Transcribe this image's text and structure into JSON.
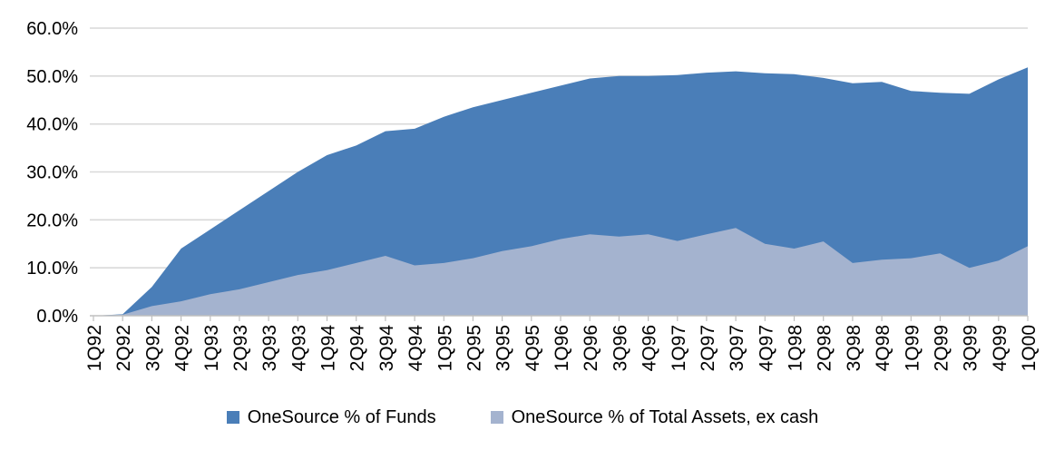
{
  "chart_data": {
    "type": "area",
    "title": "",
    "xlabel": "",
    "ylabel": "",
    "categories": [
      "1Q92",
      "2Q92",
      "3Q92",
      "4Q92",
      "1Q93",
      "2Q93",
      "3Q93",
      "4Q93",
      "1Q94",
      "2Q94",
      "3Q94",
      "4Q94",
      "1Q95",
      "2Q95",
      "3Q95",
      "4Q95",
      "1Q96",
      "2Q96",
      "3Q96",
      "4Q96",
      "1Q97",
      "2Q97",
      "3Q97",
      "4Q97",
      "1Q98",
      "2Q98",
      "3Q98",
      "4Q98",
      "1Q99",
      "2Q99",
      "3Q99",
      "4Q99",
      "1Q00"
    ],
    "series": [
      {
        "name": "OneSource % of Funds",
        "color": "#4A7EB8",
        "values": [
          0,
          0.3,
          6,
          14,
          18,
          22,
          26,
          30,
          33.5,
          35.5,
          38.5,
          39,
          41.5,
          43.5,
          45,
          46.5,
          48,
          49.5,
          50,
          50,
          50.2,
          50.7,
          51,
          50.6,
          50.4,
          49.6,
          48.5,
          48.8,
          46.9,
          46.5,
          46.3,
          49.3,
          51.8
        ]
      },
      {
        "name": "OneSource % of Total Assets, ex cash",
        "color": "#A4B3CF",
        "values": [
          0,
          0.2,
          2,
          3,
          4.5,
          5.5,
          7,
          8.5,
          9.5,
          11,
          12.5,
          10.5,
          11,
          12,
          13.5,
          14.5,
          16,
          17,
          16.5,
          17,
          15.6,
          17,
          18.3,
          15,
          14,
          15.5,
          11,
          11.7,
          12,
          13,
          10,
          11.5,
          14.5
        ]
      }
    ],
    "ylim": [
      0,
      60
    ],
    "ytick_labels": [
      "0.0%",
      "10.0%",
      "20.0%",
      "30.0%",
      "40.0%",
      "50.0%",
      "60.0%"
    ],
    "grid": "horizontal",
    "gridline_color": "#D9D9D9",
    "axis_color": "#BFBFBF",
    "legend_position": "bottom",
    "x_label_rotation": -90
  }
}
